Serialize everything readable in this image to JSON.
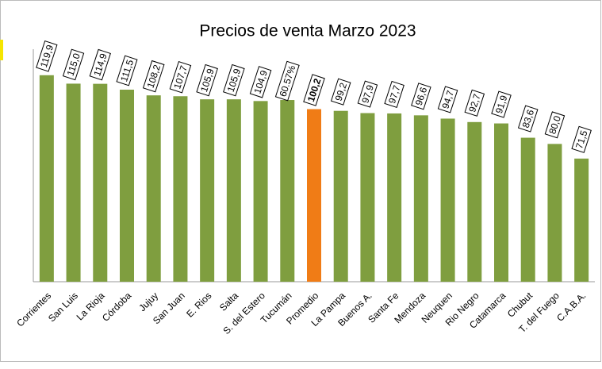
{
  "chart_data": {
    "type": "bar",
    "title": "Precios de venta Marzo 2023",
    "categories": [
      "Corrientes",
      "San Luis",
      "La Rioja",
      "Córdoba",
      "Jujuy",
      "San Juan",
      "E. Rios",
      "Salta",
      "S. del Estero",
      "Tucumán",
      "Promedio",
      "La Pampa",
      "Buenos A.",
      "Santa Fe",
      "Mendoza",
      "Neuquen",
      "Rio Negro",
      "Catamarca",
      "Chubut",
      "T. del Fuego",
      "C.A.B.A."
    ],
    "values": [
      119.9,
      115.0,
      114.9,
      111.5,
      108.2,
      107.7,
      105.9,
      105.9,
      104.9,
      105.5,
      100.2,
      99.2,
      97.9,
      97.7,
      96.6,
      94.7,
      92.7,
      91.9,
      83.6,
      80.0,
      71.5
    ],
    "value_labels": [
      "119,9",
      "115,0",
      "114,9",
      "111,5",
      "108,2",
      "107,7",
      "105,9",
      "105,9",
      "104,9",
      null,
      "100,2",
      "99,2",
      "97,9",
      "97,7",
      "96,6",
      "94,7",
      "92,7",
      "91,9",
      "83,6",
      "80,0",
      "71,5"
    ],
    "annotations": [
      {
        "text": "60.57%",
        "category": "Tucumán"
      }
    ],
    "color": "#7f9e3f",
    "colors": [
      "#7f9e3f",
      "#7f9e3f",
      "#7f9e3f",
      "#7f9e3f",
      "#7f9e3f",
      "#7f9e3f",
      "#7f9e3f",
      "#7f9e3f",
      "#7f9e3f",
      "#7f9e3f",
      "#f07c16",
      "#7f9e3f",
      "#7f9e3f",
      "#7f9e3f",
      "#7f9e3f",
      "#7f9e3f",
      "#7f9e3f",
      "#7f9e3f",
      "#7f9e3f",
      "#7f9e3f",
      "#7f9e3f"
    ],
    "ylim": [
      0,
      135
    ],
    "grid": false
  }
}
